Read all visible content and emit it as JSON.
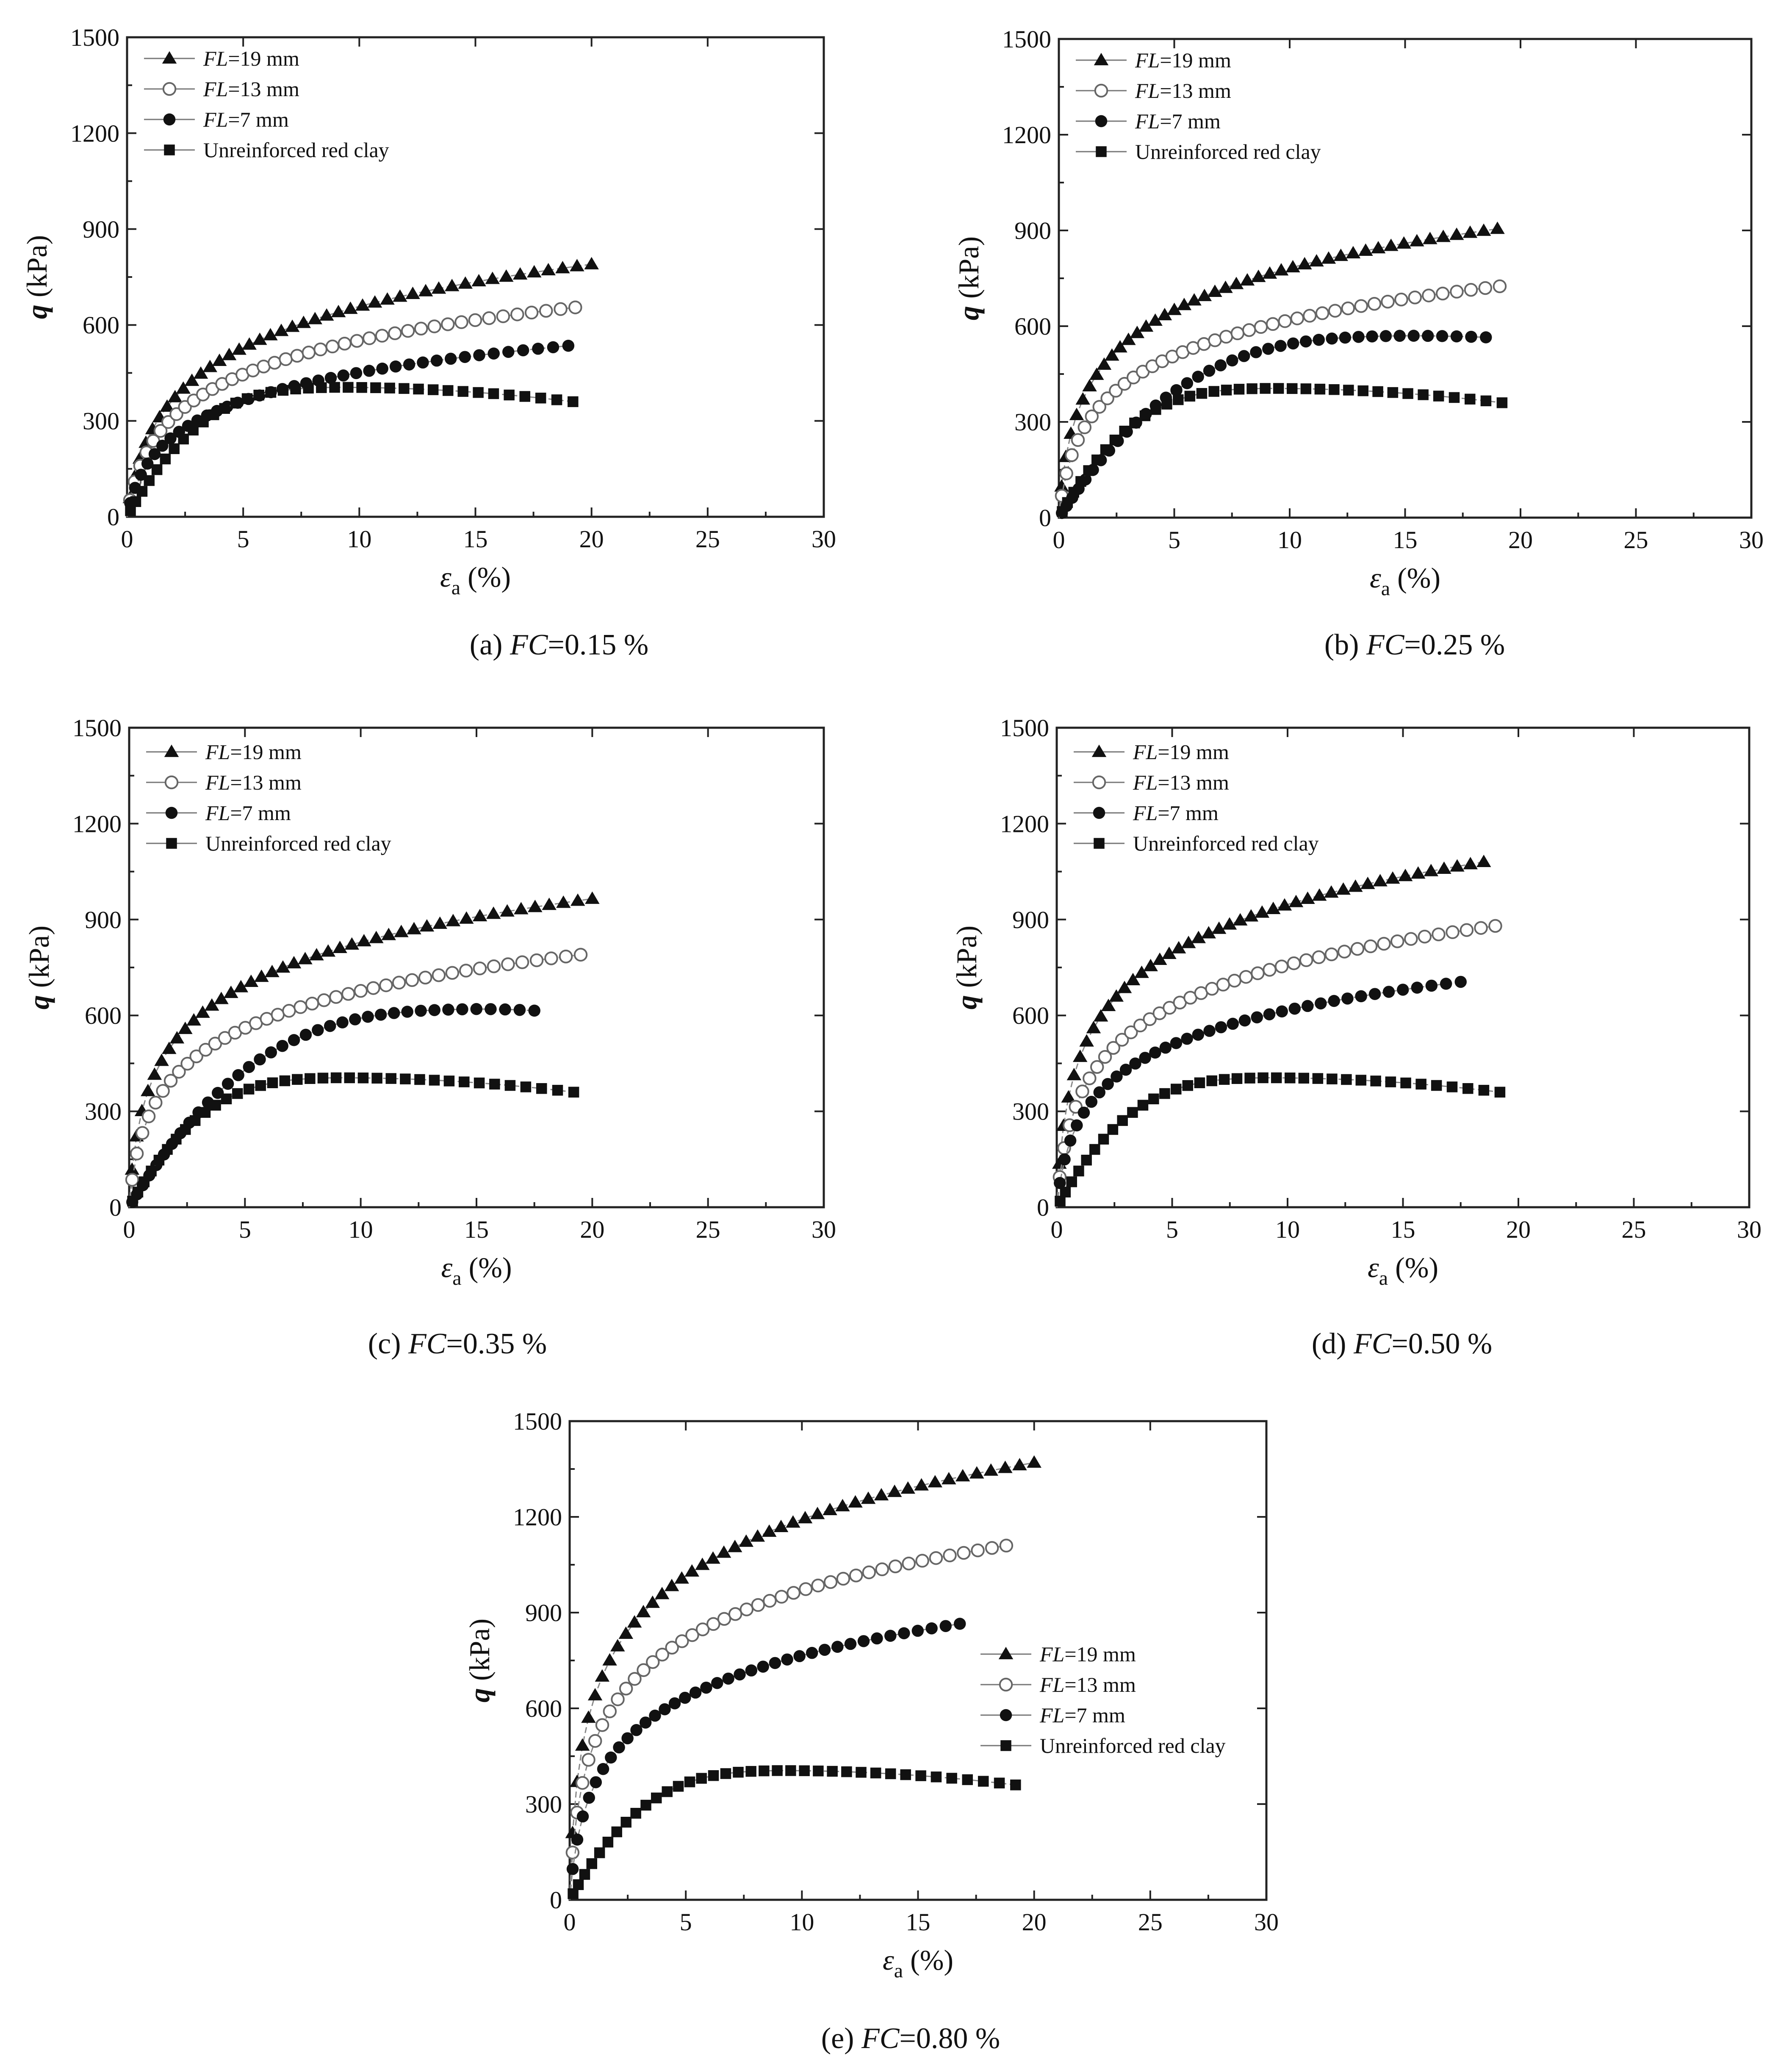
{
  "chart_data": [
    {
      "type": "scatter",
      "caption": {
        "prefix": "(a) ",
        "italic": "FC",
        "value": "=0.15 %"
      },
      "xlabel": {
        "symbol": "ε",
        "subscript": "a",
        "unit": " (%)"
      },
      "ylabel": {
        "symbol": "q",
        "unit": " (kPa)"
      },
      "xlim": [
        0,
        30
      ],
      "ylim": [
        0,
        1500
      ],
      "xticks": [
        0,
        5,
        10,
        15,
        20,
        25,
        30
      ],
      "yticks": [
        0,
        300,
        600,
        900,
        1200,
        1500
      ],
      "grid": false,
      "legend_position": "top-left",
      "series": [
        {
          "label_italic": "FL",
          "label_rest": "=19 mm",
          "marker": "triangle-filled",
          "q_end": 790,
          "x_end": 20,
          "k": 2.8,
          "points": 44
        },
        {
          "label_italic": "FL",
          "label_rest": "=13 mm",
          "marker": "circle-open",
          "q_end": 655,
          "x_end": 19.3,
          "k": 3.0,
          "points": 42
        },
        {
          "label_italic": "FL",
          "label_rest": "=7 mm",
          "marker": "circle-filled",
          "q_end": 535,
          "x_end": 19,
          "k": 2.8,
          "points": 40
        },
        {
          "label_italic": "",
          "label_rest": "Unreinforced red clay",
          "marker": "square-filled",
          "kind": "peak",
          "peak_x": 9,
          "peak_q": 405,
          "q_end": 360,
          "x_end": 19.2,
          "points": 38
        }
      ]
    },
    {
      "type": "scatter",
      "caption": {
        "prefix": "(b) ",
        "italic": "FC",
        "value": "=0.25 %"
      },
      "xlabel": {
        "symbol": "ε",
        "subscript": "a",
        "unit": " (%)"
      },
      "ylabel": {
        "symbol": "q",
        "unit": " (kPa)"
      },
      "xlim": [
        0,
        30
      ],
      "ylim": [
        0,
        1500
      ],
      "xticks": [
        0,
        5,
        10,
        15,
        20,
        25,
        30
      ],
      "yticks": [
        0,
        300,
        600,
        900,
        1200,
        1500
      ],
      "grid": false,
      "legend_position": "top-left",
      "series": [
        {
          "label_italic": "FL",
          "label_rest": "=19 mm",
          "marker": "triangle-filled",
          "q_end": 905,
          "x_end": 19,
          "k": 5.5,
          "points": 44
        },
        {
          "label_italic": "FL",
          "label_rest": "=13 mm",
          "marker": "circle-open",
          "q_end": 725,
          "x_end": 19.1,
          "k": 4.0,
          "points": 42
        },
        {
          "label_italic": "FL",
          "label_rest": "=7 mm",
          "marker": "circle-filled",
          "q_end": 565,
          "x_end": 18.5,
          "kind": "peak",
          "peak_x": 15,
          "peak_q": 570,
          "points": 40
        },
        {
          "label_italic": "",
          "label_rest": "Unreinforced red clay",
          "marker": "square-filled",
          "kind": "peak",
          "peak_x": 9,
          "peak_q": 405,
          "q_end": 360,
          "x_end": 19.2,
          "points": 38
        }
      ]
    },
    {
      "type": "scatter",
      "caption": {
        "prefix": "(c) ",
        "italic": "FC",
        "value": "=0.35 %"
      },
      "xlabel": {
        "symbol": "ε",
        "subscript": "a",
        "unit": " (%)"
      },
      "ylabel": {
        "symbol": "q",
        "unit": " (kPa)"
      },
      "xlim": [
        0,
        30
      ],
      "ylim": [
        0,
        1500
      ],
      "xticks": [
        0,
        5,
        10,
        15,
        20,
        25,
        30
      ],
      "yticks": [
        0,
        300,
        600,
        900,
        1200,
        1500
      ],
      "grid": false,
      "legend_position": "top-left",
      "series": [
        {
          "label_italic": "FL",
          "label_rest": "=19 mm",
          "marker": "triangle-filled",
          "q_end": 965,
          "x_end": 20,
          "k": 6.5,
          "points": 44
        },
        {
          "label_italic": "FL",
          "label_rest": "=13 mm",
          "marker": "circle-open",
          "q_end": 790,
          "x_end": 19.5,
          "k": 5.0,
          "points": 42
        },
        {
          "label_italic": "FL",
          "label_rest": "=7 mm",
          "marker": "circle-filled",
          "q_end": 615,
          "x_end": 17.5,
          "kind": "peak",
          "peak_x": 15,
          "peak_q": 620,
          "points": 38
        },
        {
          "label_italic": "",
          "label_rest": "Unreinforced red clay",
          "marker": "square-filled",
          "kind": "peak",
          "peak_x": 9,
          "peak_q": 405,
          "q_end": 360,
          "x_end": 19.2,
          "points": 38
        }
      ]
    },
    {
      "type": "scatter",
      "caption": {
        "prefix": "(d) ",
        "italic": "FC",
        "value": "=0.50 %"
      },
      "xlabel": {
        "symbol": "ε",
        "subscript": "a",
        "unit": " (%)"
      },
      "ylabel": {
        "symbol": "q",
        "unit": " (kPa)"
      },
      "xlim": [
        0,
        30
      ],
      "ylim": [
        0,
        1500
      ],
      "xticks": [
        0,
        5,
        10,
        15,
        20,
        25,
        30
      ],
      "yticks": [
        0,
        300,
        600,
        900,
        1200,
        1500
      ],
      "grid": false,
      "legend_position": "top-left",
      "series": [
        {
          "label_italic": "FL",
          "label_rest": "=19 mm",
          "marker": "triangle-filled",
          "q_end": 1080,
          "x_end": 18.5,
          "k": 7.5,
          "points": 44
        },
        {
          "label_italic": "FL",
          "label_rest": "=13 mm",
          "marker": "circle-open",
          "q_end": 880,
          "x_end": 19,
          "k": 5.0,
          "points": 42
        },
        {
          "label_italic": "FL",
          "label_rest": "=7 mm",
          "marker": "circle-filled",
          "q_end": 705,
          "x_end": 17.5,
          "k": 4.5,
          "points": 38
        },
        {
          "label_italic": "",
          "label_rest": "Unreinforced red clay",
          "marker": "square-filled",
          "kind": "peak",
          "peak_x": 9,
          "peak_q": 405,
          "q_end": 360,
          "x_end": 19.2,
          "points": 38
        }
      ]
    },
    {
      "type": "scatter",
      "caption": {
        "prefix": "(e) ",
        "italic": "FC",
        "value": "=0.80 %"
      },
      "xlabel": {
        "symbol": "ε",
        "subscript": "a",
        "unit": " (%)"
      },
      "ylabel": {
        "symbol": "q",
        "unit": " (kPa)"
      },
      "xlim": [
        0,
        30
      ],
      "ylim": [
        0,
        1500
      ],
      "xticks": [
        0,
        5,
        10,
        15,
        20,
        25,
        30
      ],
      "yticks": [
        0,
        300,
        600,
        900,
        1200,
        1500
      ],
      "grid": false,
      "legend_position": "right-middle",
      "series": [
        {
          "label_italic": "FL",
          "label_rest": "=19 mm",
          "marker": "triangle-filled",
          "q_end": 1370,
          "x_end": 20,
          "k": 10,
          "points": 44
        },
        {
          "label_italic": "FL",
          "label_rest": "=13 mm",
          "marker": "circle-open",
          "q_end": 1110,
          "x_end": 18.8,
          "k": 7.5,
          "points": 42
        },
        {
          "label_italic": "FL",
          "label_rest": "=7 mm",
          "marker": "circle-filled",
          "q_end": 865,
          "x_end": 16.8,
          "k": 5.0,
          "points": 38
        },
        {
          "label_italic": "",
          "label_rest": "Unreinforced red clay",
          "marker": "square-filled",
          "kind": "peak",
          "peak_x": 9,
          "peak_q": 405,
          "q_end": 360,
          "x_end": 19.2,
          "points": 38
        }
      ]
    }
  ]
}
